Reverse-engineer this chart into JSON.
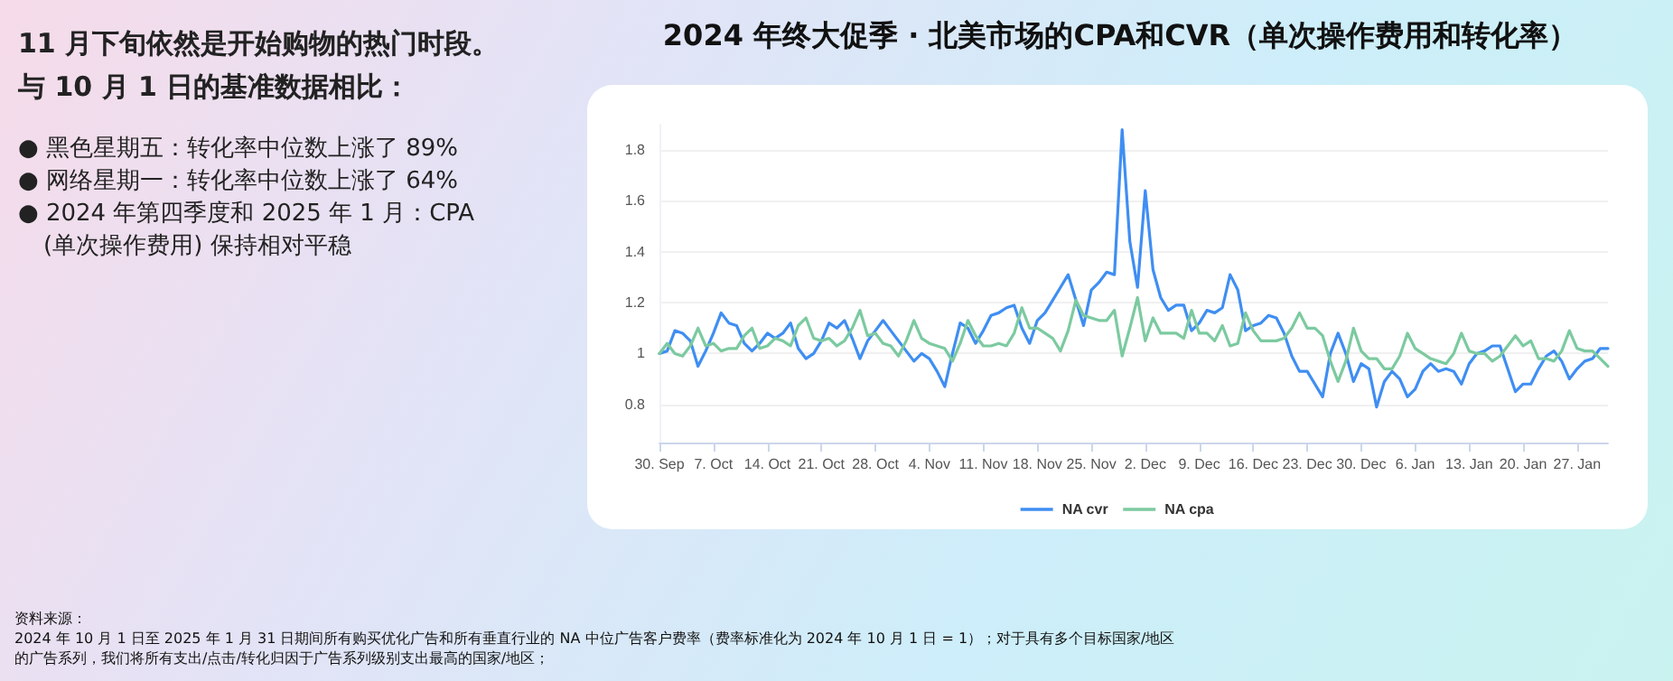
{
  "chart_data": {
    "type": "line",
    "title": "2024 年终大促季 · 北美市场的CPA和CVR（单次操作费用和转化率）",
    "annotations": [
      "11 月下旬依然是开始购物的热门时段。",
      "与 10 月 1 日的基准数据相比：",
      "● 黑色星期五：转化率中位数上涨了 89%",
      "● 网络星期一：转化率中位数上涨了 64%",
      "● 2024 年第四季度和 2025 年 1 月：CPA (单次操作费用) 保持相对平稳",
      "资料来源：",
      "2024 年 10 月 1 日至 2025 年 1 月 31 日期间所有购买优化广告和所有垂直行业的 NA 中位广告客户费率（费率标准化为 2024 年 10 月 1 日 = 1）；对于具有多个目标国家/地区的广告系列，我们将所有支出/点击/转化归因于广告系列级别支出最高的国家/地区；"
    ],
    "categories": [
      "30. Sep",
      null,
      null,
      null,
      null,
      null,
      null,
      "7. Oct",
      null,
      null,
      null,
      null,
      null,
      null,
      "14. Oct",
      null,
      null,
      null,
      null,
      null,
      null,
      "21. Oct",
      null,
      null,
      null,
      null,
      null,
      null,
      "28. Oct",
      null,
      null,
      null,
      null,
      null,
      null,
      "4. Nov",
      null,
      null,
      null,
      null,
      null,
      null,
      "11. Nov",
      null,
      null,
      null,
      null,
      null,
      null,
      "18. Nov",
      null,
      null,
      null,
      null,
      null,
      null,
      "25. Nov",
      null,
      null,
      null,
      null,
      null,
      null,
      "2. Dec",
      null,
      null,
      null,
      null,
      null,
      null,
      "9. Dec",
      null,
      null,
      null,
      null,
      null,
      null,
      "16. Dec",
      null,
      null,
      null,
      null,
      null,
      null,
      "23. Dec",
      null,
      null,
      null,
      null,
      null,
      null,
      "30. Dec",
      null,
      null,
      null,
      null,
      null,
      null,
      "6. Jan",
      null,
      null,
      null,
      null,
      null,
      null,
      "13. Jan",
      null,
      null,
      null,
      null,
      null,
      null,
      "20. Jan",
      null,
      null,
      null,
      null,
      null,
      null,
      "27. Jan",
      null,
      null,
      null,
      null
    ],
    "series": [
      {
        "name": "NA cvr",
        "color": "#3f8ef2",
        "values": [
          1.0,
          1.01,
          1.09,
          1.08,
          1.05,
          0.95,
          1.01,
          1.08,
          1.16,
          1.12,
          1.11,
          1.04,
          1.01,
          1.04,
          1.08,
          1.06,
          1.08,
          1.12,
          1.02,
          0.98,
          1.0,
          1.05,
          1.12,
          1.1,
          1.13,
          1.06,
          0.98,
          1.05,
          1.09,
          1.13,
          1.09,
          1.05,
          1.01,
          0.97,
          1.0,
          0.98,
          0.93,
          0.87,
          1.0,
          1.12,
          1.1,
          1.04,
          1.09,
          1.15,
          1.16,
          1.18,
          1.19,
          1.1,
          1.04,
          1.13,
          1.16,
          1.21,
          1.26,
          1.31,
          1.21,
          1.11,
          1.25,
          1.28,
          1.32,
          1.31,
          1.88,
          1.44,
          1.26,
          1.64,
          1.33,
          1.22,
          1.17,
          1.19,
          1.19,
          1.09,
          1.12,
          1.17,
          1.16,
          1.18,
          1.31,
          1.25,
          1.09,
          1.11,
          1.12,
          1.15,
          1.14,
          1.08,
          0.99,
          0.93,
          0.93,
          0.88,
          0.83,
          1.0,
          1.08,
          1.0,
          0.89,
          0.96,
          0.94,
          0.79,
          0.89,
          0.93,
          0.9,
          0.83,
          0.86,
          0.93,
          0.96,
          0.93,
          0.94,
          0.93,
          0.88,
          0.96,
          1.0,
          1.01,
          1.03,
          1.03,
          0.94,
          0.85,
          0.88,
          0.88,
          0.94,
          0.99,
          1.01,
          0.97,
          0.9,
          0.94,
          0.97,
          0.98,
          1.02,
          1.02
        ]
      },
      {
        "name": "NA cpa",
        "color": "#7ccaa0",
        "values": [
          1.0,
          1.04,
          1.0,
          0.99,
          1.03,
          1.1,
          1.03,
          1.04,
          1.01,
          1.02,
          1.02,
          1.07,
          1.1,
          1.02,
          1.03,
          1.06,
          1.05,
          1.03,
          1.11,
          1.14,
          1.06,
          1.05,
          1.06,
          1.03,
          1.05,
          1.1,
          1.17,
          1.07,
          1.08,
          1.04,
          1.03,
          0.99,
          1.05,
          1.13,
          1.06,
          1.04,
          1.03,
          1.02,
          0.97,
          1.04,
          1.13,
          1.07,
          1.03,
          1.03,
          1.04,
          1.03,
          1.08,
          1.18,
          1.1,
          1.1,
          1.08,
          1.06,
          1.01,
          1.09,
          1.21,
          1.15,
          1.14,
          1.13,
          1.13,
          1.17,
          0.99,
          1.1,
          1.22,
          1.05,
          1.14,
          1.08,
          1.08,
          1.08,
          1.06,
          1.17,
          1.08,
          1.08,
          1.05,
          1.11,
          1.03,
          1.04,
          1.16,
          1.09,
          1.05,
          1.05,
          1.05,
          1.06,
          1.1,
          1.16,
          1.1,
          1.1,
          1.07,
          0.97,
          0.89,
          0.97,
          1.1,
          1.01,
          0.98,
          0.98,
          0.94,
          0.94,
          0.99,
          1.08,
          1.02,
          1.0,
          0.98,
          0.97,
          0.96,
          1.0,
          1.08,
          1.01,
          1.0,
          1.0,
          0.97,
          0.99,
          1.03,
          1.07,
          1.03,
          1.05,
          0.98,
          0.98,
          0.97,
          1.01,
          1.09,
          1.02,
          1.01,
          1.01,
          0.98,
          0.95
        ]
      }
    ],
    "ylim": [
      0.65,
      1.9
    ],
    "yticks": [
      0.8,
      1,
      1.2,
      1.4,
      1.6,
      1.8
    ],
    "grid": "y",
    "legend": "bottom",
    "marker": "none",
    "line_style": "solid"
  }
}
